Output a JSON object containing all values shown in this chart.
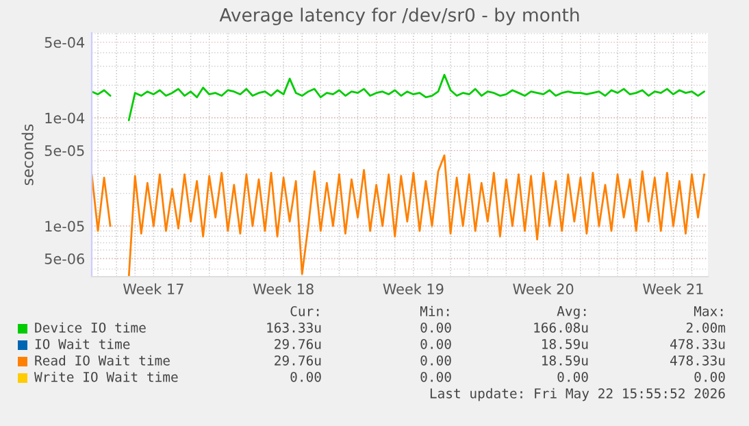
{
  "chart_data": {
    "type": "line",
    "title": "Average latency for /dev/sr0 - by month",
    "ylabel": "seconds",
    "categories": [
      null,
      null,
      null,
      null,
      null,
      null,
      null,
      null,
      null,
      null,
      "Week 17",
      null,
      null,
      null,
      null,
      null,
      null,
      null,
      null,
      null,
      null,
      null,
      null,
      null,
      null,
      null,
      null,
      null,
      null,
      null,
      null,
      "Week 18",
      null,
      null,
      null,
      null,
      null,
      null,
      null,
      null,
      null,
      null,
      null,
      null,
      null,
      null,
      null,
      null,
      null,
      null,
      null,
      null,
      "Week 19",
      null,
      null,
      null,
      null,
      null,
      null,
      null,
      null,
      null,
      null,
      null,
      null,
      null,
      null,
      null,
      null,
      null,
      null,
      null,
      null,
      "Week 20",
      null,
      null,
      null,
      null,
      null,
      null,
      null,
      null,
      null,
      null,
      null,
      null,
      null,
      null,
      null,
      null,
      null,
      null,
      null,
      null,
      "Week 21",
      null,
      null,
      null,
      null,
      null
    ],
    "series": [
      {
        "name": "Device IO time",
        "color": "#00cc00",
        "values": [
          0.000175,
          0.000165,
          0.00018,
          0.00016,
          null,
          null,
          9.5e-05,
          0.00017,
          0.00016,
          0.000175,
          0.000165,
          0.00018,
          0.00016,
          0.00017,
          0.000185,
          0.00016,
          0.000175,
          0.000155,
          0.00019,
          0.000165,
          0.00017,
          0.00016,
          0.00018,
          0.000175,
          0.000165,
          0.000185,
          0.00016,
          0.00017,
          0.000175,
          0.00016,
          0.00018,
          0.000165,
          0.00023,
          0.00017,
          0.00016,
          0.000175,
          0.000185,
          0.000155,
          0.00017,
          0.000165,
          0.00018,
          0.00016,
          0.000175,
          0.00017,
          0.000185,
          0.00016,
          0.00017,
          0.000175,
          0.000165,
          0.00018,
          0.00016,
          0.000175,
          0.000165,
          0.00017,
          0.000155,
          0.00016,
          0.000175,
          0.00025,
          0.00018,
          0.00016,
          0.00017,
          0.000165,
          0.000185,
          0.00016,
          0.000175,
          0.00017,
          0.00016,
          0.000165,
          0.00018,
          0.00017,
          0.00016,
          0.000175,
          0.00017,
          0.000165,
          0.00018,
          0.00016,
          0.00017,
          0.000175,
          0.00017,
          0.00017,
          0.000165,
          0.00017,
          0.000175,
          0.00016,
          0.00018,
          0.00017,
          0.000185,
          0.000165,
          0.00017,
          0.00018,
          0.00016,
          0.000175,
          0.00017,
          0.000185,
          0.000165,
          0.00018,
          0.00017,
          0.000175,
          0.00016,
          0.000175
        ]
      },
      {
        "name": "IO Wait time",
        "color": "#0066b3",
        "values": [
          null,
          null,
          null,
          null,
          null,
          null,
          null,
          null,
          null,
          null,
          null,
          null,
          null,
          null,
          null,
          null,
          null,
          null,
          null,
          null,
          null,
          null,
          null,
          null,
          null,
          null,
          null,
          null,
          null,
          null,
          null,
          null,
          null,
          null,
          null,
          null,
          null,
          null,
          null,
          null,
          null,
          null,
          null,
          null,
          null,
          null,
          null,
          null,
          null,
          null,
          null,
          null,
          null,
          null,
          null,
          null,
          null,
          null,
          null,
          null,
          null,
          null,
          null,
          null,
          null,
          null,
          null,
          null,
          null,
          null,
          null,
          null,
          null,
          null,
          null,
          null,
          null,
          null,
          null,
          null,
          null,
          null,
          null,
          null,
          null,
          null,
          null,
          null,
          null,
          null,
          null,
          null,
          null,
          null,
          null,
          null,
          null,
          null,
          null,
          null
        ]
      },
      {
        "name": "Read IO Wait time",
        "color": "#ff8000",
        "values": [
          3e-05,
          9e-06,
          2.8e-05,
          1e-05,
          null,
          null,
          3.4e-06,
          2.9e-05,
          8.5e-06,
          2.5e-05,
          1e-05,
          3e-05,
          9e-06,
          2.2e-05,
          9.5e-06,
          3e-05,
          1.1e-05,
          2.6e-05,
          8e-06,
          2.9e-05,
          1.2e-05,
          3.1e-05,
          9e-06,
          2.4e-05,
          8.5e-06,
          3e-05,
          1e-05,
          2.7e-05,
          9e-06,
          3.1e-05,
          8e-06,
          2.8e-05,
          1.1e-05,
          2.6e-05,
          3.6e-06,
          1e-05,
          3.2e-05,
          9e-06,
          2.5e-05,
          1e-05,
          3e-05,
          8.5e-06,
          2.7e-05,
          1.2e-05,
          3.3e-05,
          9e-06,
          2.4e-05,
          1e-05,
          3e-05,
          8e-06,
          2.9e-05,
          1.1e-05,
          3.1e-05,
          9e-06,
          2.6e-05,
          1e-05,
          3.2e-05,
          4.5e-05,
          8.5e-06,
          2.8e-05,
          1e-05,
          3e-05,
          9e-06,
          2.5e-05,
          1.1e-05,
          3.1e-05,
          8e-06,
          2.7e-05,
          1e-05,
          3e-05,
          9e-06,
          2.9e-05,
          7.5e-06,
          3.1e-05,
          1e-05,
          2.6e-05,
          9e-06,
          3e-05,
          1.1e-05,
          2.8e-05,
          8.5e-06,
          3.1e-05,
          1e-05,
          2.4e-05,
          9e-06,
          3e-05,
          1.2e-05,
          2.7e-05,
          9e-06,
          3.2e-05,
          1.1e-05,
          2.8e-05,
          9e-06,
          3.1e-05,
          1e-05,
          2.6e-05,
          8.5e-06,
          3e-05,
          1.2e-05,
          3e-05
        ]
      },
      {
        "name": "Write IO Wait time",
        "color": "#ffcc00",
        "values": [
          null,
          null,
          null,
          null,
          null,
          null,
          null,
          null,
          null,
          null,
          null,
          null,
          null,
          null,
          null,
          null,
          null,
          null,
          null,
          null,
          null,
          null,
          null,
          null,
          null,
          null,
          null,
          null,
          null,
          null,
          null,
          null,
          null,
          null,
          null,
          null,
          null,
          null,
          null,
          null,
          null,
          null,
          null,
          null,
          null,
          null,
          null,
          null,
          null,
          null,
          null,
          null,
          null,
          null,
          null,
          null,
          null,
          null,
          null,
          null,
          null,
          null,
          null,
          null,
          null,
          null,
          null,
          null,
          null,
          null,
          null,
          null,
          null,
          null,
          null,
          null,
          null,
          null,
          null,
          null,
          null,
          null,
          null,
          null,
          null,
          null,
          null,
          null,
          null,
          null,
          null,
          null,
          null,
          null,
          null,
          null,
          null,
          null,
          null,
          null
        ]
      }
    ],
    "log": true,
    "ylim": [
      3.4e-06,
      0.00061
    ],
    "yticks": [
      {
        "value": 5e-06,
        "label": "5e-06"
      },
      {
        "value": 1e-05,
        "label": "1e-05"
      },
      {
        "value": 5e-05,
        "label": "5e-05"
      },
      {
        "value": 0.0001,
        "label": "1e-04"
      },
      {
        "value": 0.0005,
        "label": "5e-04"
      }
    ],
    "grid": true,
    "legend": "bottom",
    "marker": "none",
    "line_style": "solid",
    "annotations": [
      "Cur:",
      "Min:",
      "Avg:",
      "Max:",
      "163.33u",
      "0.00",
      "166.08u",
      "2.00m",
      "29.76u",
      "0.00",
      "18.59u",
      "478.33u",
      "29.76u",
      "0.00",
      "18.59u",
      "478.33u",
      "0.00",
      "0.00",
      "0.00",
      "0.00",
      "Last update: Fri May 22 15:55:52 2026"
    ]
  }
}
